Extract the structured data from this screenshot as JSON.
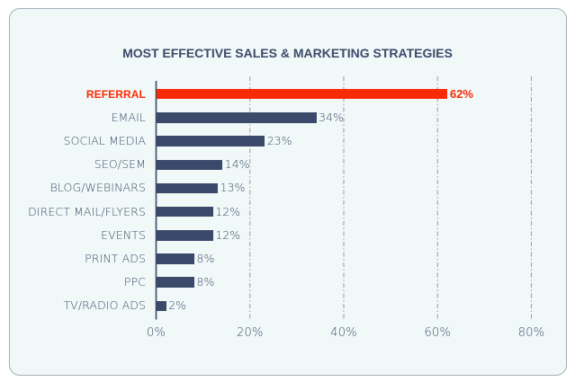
{
  "card": {
    "background": "#f1f8f8",
    "border_color": "#a5aeb9"
  },
  "colors": {
    "bar_navy": "#3b4a6b",
    "highlight_red": "#f92b06",
    "gridline_mauve": "#b28da0",
    "text_navy": "#3d4c6d"
  },
  "chart_data": {
    "type": "bar",
    "orientation": "horizontal",
    "title": "MOST EFFECTIVE SALES & MARKETING STRATEGIES",
    "categories": [
      "REFERRAL",
      "EMAIL",
      "SOCIAL MEDIA",
      "SEO/SEM",
      "BLOG/WEBINARS",
      "DIRECT MAIL/FLYERS",
      "EVENTS",
      "PRINT ADS",
      "PPC",
      "TV/RADIO ADS"
    ],
    "values": [
      62,
      34,
      23,
      14,
      13,
      12,
      12,
      8,
      8,
      2
    ],
    "value_labels": [
      "62%",
      "34%",
      "23%",
      "14%",
      "13%",
      "12%",
      "12%",
      "8%",
      "8%",
      "2%"
    ],
    "highlight_index": 0,
    "highlight_category_note": "REFERRAL bar, its label and value are red; all other bars are navy",
    "xlabel": "",
    "ylabel": "",
    "x_ticks": [
      "0%",
      "20%",
      "40%",
      "60%",
      "80%"
    ],
    "x_tick_values": [
      0,
      20,
      40,
      60,
      80
    ],
    "xlim": [
      0,
      87
    ],
    "grid": "vertical dash-dot gridlines at 20/40/60/80, solid y-axis at 0",
    "legend": "none"
  }
}
